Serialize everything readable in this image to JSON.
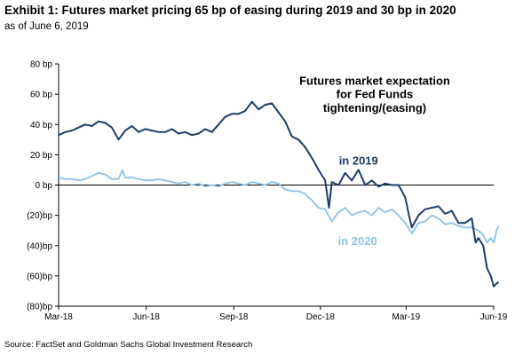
{
  "header": {
    "title": "Exhibit 1: Futures market pricing 65 bp of easing during 2019 and 30 bp in 2020",
    "subtitle": "as of June 6, 2019"
  },
  "footer": {
    "source": "Source: FactSet and Goldman Sachs Global Investment Research"
  },
  "colors": {
    "series_2019": "#1f3d66",
    "series_2020": "#8cc2e6",
    "axis": "#000000"
  },
  "chart_data": {
    "type": "line",
    "title": "Exhibit 1: Futures market pricing 65 bp of easing during 2019 and 30 bp in 2020",
    "subtitle": "as of June 6, 2019",
    "xlabel": "",
    "ylabel": "",
    "xlim": [
      "2018-03-01",
      "2019-06-01"
    ],
    "ylim": [
      -80,
      80
    ],
    "grid": false,
    "x_ticks": [
      {
        "date": "2018-03-01",
        "label": "Mar-18"
      },
      {
        "date": "2018-06-01",
        "label": "Jun-18"
      },
      {
        "date": "2018-09-01",
        "label": "Sep-18"
      },
      {
        "date": "2018-12-01",
        "label": "Dec-18"
      },
      {
        "date": "2019-03-01",
        "label": "Mar-19"
      },
      {
        "date": "2019-06-01",
        "label": "Jun-19"
      }
    ],
    "y_ticks": [
      {
        "value": 80,
        "label": "80 bp"
      },
      {
        "value": 60,
        "label": "60 bp"
      },
      {
        "value": 40,
        "label": "40 bp"
      },
      {
        "value": 20,
        "label": "20 bp"
      },
      {
        "value": 0,
        "label": "0 bp"
      },
      {
        "value": -20,
        "label": "(20)bp"
      },
      {
        "value": -40,
        "label": "(40)bp"
      },
      {
        "value": -60,
        "label": "(60)bp"
      },
      {
        "value": -80,
        "label": "(80)bp"
      }
    ],
    "annotations": [
      {
        "text": "Futures market expectation",
        "x": "2019-01-27",
        "y": 69
      },
      {
        "text": "for Fed Funds",
        "x": "2019-01-27",
        "y": 60
      },
      {
        "text": "tightening/(easing)",
        "x": "2019-01-27",
        "y": 51
      },
      {
        "text": "in 2019",
        "x": "2019-01-10",
        "y": 16,
        "series": "in 2019"
      },
      {
        "text": "in 2020",
        "x": "2019-01-09",
        "y": -37,
        "series": "in 2020"
      }
    ],
    "series": [
      {
        "name": "in 2019",
        "points": [
          [
            "2018-03-01",
            33
          ],
          [
            "2018-03-08",
            35
          ],
          [
            "2018-03-15",
            36
          ],
          [
            "2018-03-22",
            38
          ],
          [
            "2018-03-29",
            40
          ],
          [
            "2018-04-05",
            39
          ],
          [
            "2018-04-12",
            42
          ],
          [
            "2018-04-19",
            41
          ],
          [
            "2018-04-26",
            38
          ],
          [
            "2018-05-03",
            30
          ],
          [
            "2018-05-10",
            36
          ],
          [
            "2018-05-17",
            39
          ],
          [
            "2018-05-24",
            35
          ],
          [
            "2018-05-31",
            37
          ],
          [
            "2018-06-07",
            36
          ],
          [
            "2018-06-14",
            35
          ],
          [
            "2018-06-21",
            35
          ],
          [
            "2018-06-28",
            37
          ],
          [
            "2018-07-05",
            34
          ],
          [
            "2018-07-12",
            35
          ],
          [
            "2018-07-19",
            33
          ],
          [
            "2018-07-26",
            34
          ],
          [
            "2018-08-02",
            37
          ],
          [
            "2018-08-09",
            35
          ],
          [
            "2018-08-16",
            40
          ],
          [
            "2018-08-23",
            45
          ],
          [
            "2018-08-30",
            47
          ],
          [
            "2018-09-06",
            47
          ],
          [
            "2018-09-13",
            49
          ],
          [
            "2018-09-20",
            55
          ],
          [
            "2018-09-27",
            50
          ],
          [
            "2018-10-04",
            53
          ],
          [
            "2018-10-11",
            54
          ],
          [
            "2018-10-18",
            48
          ],
          [
            "2018-10-25",
            42
          ],
          [
            "2018-11-01",
            32
          ],
          [
            "2018-11-08",
            30
          ],
          [
            "2018-11-15",
            25
          ],
          [
            "2018-11-22",
            18
          ],
          [
            "2018-11-29",
            10
          ],
          [
            "2018-12-06",
            3
          ],
          [
            "2018-12-10",
            -15
          ],
          [
            "2018-12-13",
            2
          ],
          [
            "2018-12-20",
            0
          ],
          [
            "2018-12-27",
            8
          ],
          [
            "2019-01-03",
            3
          ],
          [
            "2019-01-10",
            10
          ],
          [
            "2019-01-17",
            0
          ],
          [
            "2019-01-24",
            3
          ],
          [
            "2019-01-31",
            -1
          ],
          [
            "2019-02-07",
            1
          ],
          [
            "2019-02-14",
            0
          ],
          [
            "2019-02-21",
            0
          ],
          [
            "2019-02-28",
            -8
          ],
          [
            "2019-03-04",
            -20
          ],
          [
            "2019-03-07",
            -28
          ],
          [
            "2019-03-14",
            -20
          ],
          [
            "2019-03-21",
            -16
          ],
          [
            "2019-03-28",
            -15
          ],
          [
            "2019-04-04",
            -14
          ],
          [
            "2019-04-11",
            -19
          ],
          [
            "2019-04-18",
            -17
          ],
          [
            "2019-04-25",
            -25
          ],
          [
            "2019-05-02",
            -25
          ],
          [
            "2019-05-09",
            -22
          ],
          [
            "2019-05-13",
            -38
          ],
          [
            "2019-05-16",
            -35
          ],
          [
            "2019-05-21",
            -40
          ],
          [
            "2019-05-25",
            -55
          ],
          [
            "2019-05-29",
            -60
          ],
          [
            "2019-06-01",
            -67
          ],
          [
            "2019-06-04",
            -65
          ],
          [
            "2019-06-06",
            -64
          ]
        ]
      },
      {
        "name": "in 2020",
        "points": [
          [
            "2018-03-01",
            5
          ],
          [
            "2018-03-08",
            4
          ],
          [
            "2018-03-15",
            4
          ],
          [
            "2018-03-22",
            3
          ],
          [
            "2018-03-29",
            4
          ],
          [
            "2018-04-05",
            6
          ],
          [
            "2018-04-12",
            8
          ],
          [
            "2018-04-19",
            7
          ],
          [
            "2018-04-26",
            4
          ],
          [
            "2018-05-03",
            4
          ],
          [
            "2018-05-07",
            10
          ],
          [
            "2018-05-10",
            5
          ],
          [
            "2018-05-17",
            5
          ],
          [
            "2018-05-24",
            4
          ],
          [
            "2018-05-31",
            3
          ],
          [
            "2018-06-07",
            3
          ],
          [
            "2018-06-14",
            4
          ],
          [
            "2018-06-21",
            3
          ],
          [
            "2018-06-28",
            2
          ],
          [
            "2018-07-05",
            1
          ],
          [
            "2018-07-12",
            2
          ],
          [
            "2018-07-19",
            0
          ],
          [
            "2018-07-26",
            1
          ],
          [
            "2018-08-02",
            -1
          ],
          [
            "2018-08-09",
            0
          ],
          [
            "2018-08-16",
            -1
          ],
          [
            "2018-08-23",
            1
          ],
          [
            "2018-08-30",
            2
          ],
          [
            "2018-09-06",
            1
          ],
          [
            "2018-09-13",
            0
          ],
          [
            "2018-09-20",
            2
          ],
          [
            "2018-09-27",
            1
          ],
          [
            "2018-10-04",
            0
          ],
          [
            "2018-10-11",
            2
          ],
          [
            "2018-10-18",
            1
          ],
          [
            "2018-10-25",
            -3
          ],
          [
            "2018-11-01",
            -4
          ],
          [
            "2018-11-08",
            -4
          ],
          [
            "2018-11-15",
            -6
          ],
          [
            "2018-11-22",
            -10
          ],
          [
            "2018-11-29",
            -15
          ],
          [
            "2018-12-06",
            -16
          ],
          [
            "2018-12-13",
            -24
          ],
          [
            "2018-12-20",
            -18
          ],
          [
            "2018-12-27",
            -15
          ],
          [
            "2019-01-03",
            -20
          ],
          [
            "2019-01-10",
            -18
          ],
          [
            "2019-01-17",
            -17
          ],
          [
            "2019-01-24",
            -20
          ],
          [
            "2019-01-31",
            -15
          ],
          [
            "2019-02-07",
            -18
          ],
          [
            "2019-02-14",
            -16
          ],
          [
            "2019-02-21",
            -20
          ],
          [
            "2019-02-28",
            -25
          ],
          [
            "2019-03-07",
            -32
          ],
          [
            "2019-03-14",
            -25
          ],
          [
            "2019-03-21",
            -24
          ],
          [
            "2019-03-28",
            -20
          ],
          [
            "2019-04-04",
            -22
          ],
          [
            "2019-04-11",
            -26
          ],
          [
            "2019-04-18",
            -25
          ],
          [
            "2019-04-25",
            -27
          ],
          [
            "2019-05-02",
            -28
          ],
          [
            "2019-05-09",
            -28
          ],
          [
            "2019-05-16",
            -30
          ],
          [
            "2019-05-21",
            -33
          ],
          [
            "2019-05-25",
            -38
          ],
          [
            "2019-05-29",
            -35
          ],
          [
            "2019-06-01",
            -38
          ],
          [
            "2019-06-04",
            -30
          ],
          [
            "2019-06-06",
            -27
          ]
        ]
      }
    ]
  }
}
